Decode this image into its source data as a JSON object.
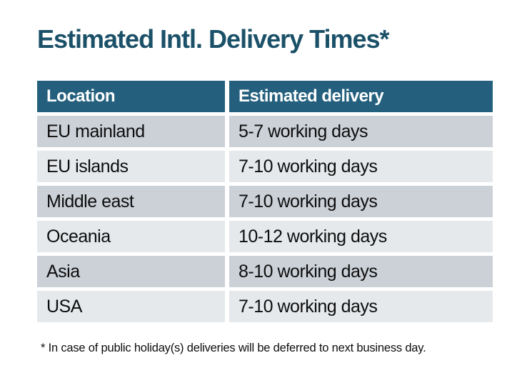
{
  "title": "Estimated Intl. Delivery Times*",
  "table": {
    "columns": [
      "Location",
      "Estimated delivery"
    ],
    "rows": [
      {
        "location": "EU mainland",
        "delivery": "5-7 working days"
      },
      {
        "location": "EU islands",
        "delivery": "7-10 working days"
      },
      {
        "location": "Middle east",
        "delivery": "7-10 working days"
      },
      {
        "location": "Oceania",
        "delivery": "10-12 working days"
      },
      {
        "location": "Asia",
        "delivery": "8-10 working days"
      },
      {
        "location": "USA",
        "delivery": "7-10 working days"
      }
    ]
  },
  "footnote": "* In case of public holiday(s) deliveries will be deferred to next business day.",
  "colors": {
    "title-color": "#1B5168",
    "header-bg": "#24607D",
    "header-text": "#FFFFFF",
    "row-dark": "#CCD1D8",
    "row-light": "#E5E9EC",
    "body-text": "#0D0D0D"
  }
}
